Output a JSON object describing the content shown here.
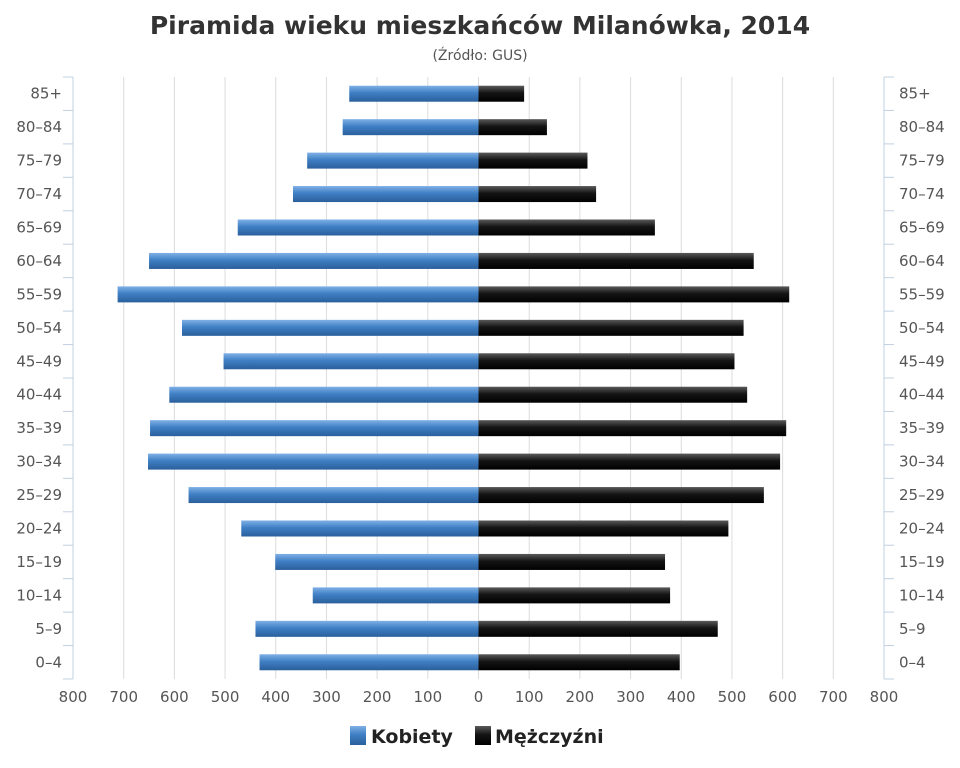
{
  "chart_data": {
    "type": "bar",
    "orientation": "horizontal",
    "layout": "population-pyramid",
    "title": "Piramida wieku mieszkańców Milanówka, 2014",
    "subtitle": "(Źródło: GUS)",
    "categories": [
      "85+",
      "80–84",
      "75–79",
      "70–74",
      "65–69",
      "60–64",
      "55–59",
      "50–54",
      "45–49",
      "40–44",
      "35–39",
      "30–34",
      "25–29",
      "20–24",
      "15–19",
      "10–14",
      "5–9",
      "0–4"
    ],
    "xlim": [
      -800,
      800
    ],
    "x_ticks": [
      800,
      700,
      600,
      500,
      400,
      300,
      200,
      100,
      0,
      100,
      200,
      300,
      400,
      500,
      600,
      700,
      800
    ],
    "grid": true,
    "legend_position": "bottom-center",
    "series": [
      {
        "name": "Kobiety",
        "side": "left",
        "color": "#3f7fc4",
        "values": [
          255,
          268,
          338,
          366,
          475,
          650,
          712,
          585,
          503,
          610,
          648,
          652,
          572,
          468,
          401,
          327,
          440,
          432
        ]
      },
      {
        "name": "Mężczyźni",
        "side": "right",
        "color": "#141414",
        "values": [
          90,
          135,
          215,
          232,
          348,
          543,
          613,
          523,
          505,
          530,
          607,
          595,
          563,
          493,
          368,
          378,
          472,
          397
        ]
      }
    ]
  }
}
